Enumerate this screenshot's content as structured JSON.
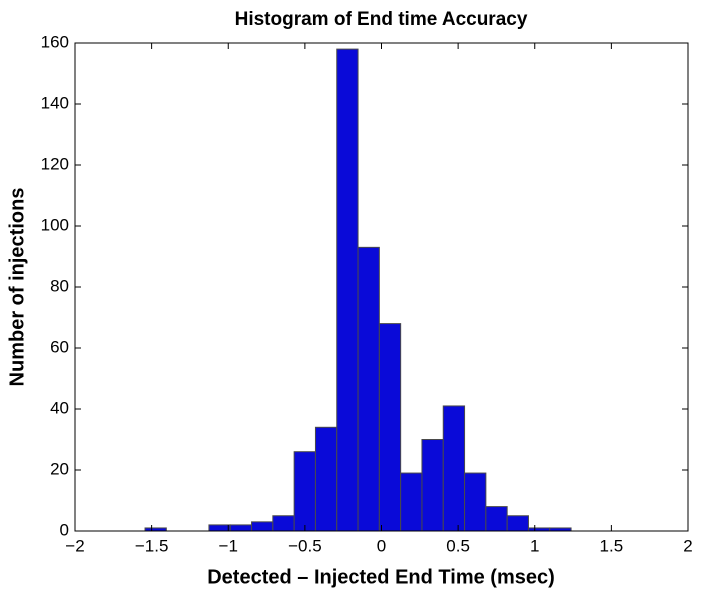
{
  "chart_data": {
    "type": "histogram",
    "title": "Histogram of End time Accuracy",
    "x_label": "Detected – Injected End Time (msec)",
    "y_label": "Number of injections",
    "bins": [
      -1.543,
      -1.404,
      -1.265,
      -1.126,
      -0.987,
      -0.848,
      -0.709,
      -0.57,
      -0.431,
      -0.292,
      -0.153,
      -0.014,
      0.125,
      0.264,
      0.403,
      0.542,
      0.681,
      0.82,
      0.959,
      1.098,
      1.237
    ],
    "values": [
      1,
      0,
      0,
      2,
      2,
      3,
      5,
      26,
      34,
      158,
      93,
      68,
      19,
      30,
      41,
      19,
      8,
      5,
      1,
      1
    ],
    "color": "#0a0ad8",
    "edgecolor": "#4a4a4a",
    "xlim": [
      -2,
      2
    ],
    "xticks": [
      {
        "value": -2,
        "label": "−2"
      },
      {
        "value": -1.5,
        "label": "−1.5"
      },
      {
        "value": -1,
        "label": "−1"
      },
      {
        "value": -0.5,
        "label": "−0.5"
      },
      0,
      0.5,
      1,
      1.5,
      2
    ],
    "ylim": [
      0,
      160
    ],
    "yticks": [
      0,
      20,
      40,
      60,
      80,
      100,
      120,
      140,
      160
    ],
    "grid": false
  }
}
